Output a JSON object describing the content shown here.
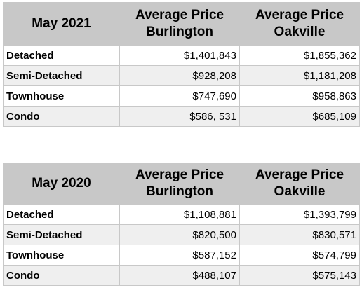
{
  "tables": [
    {
      "period": "May 2021",
      "col1_line1": "Average Price",
      "col1_line2": "Burlington",
      "col2_line1": "Average Price",
      "col2_line2": "Oakville",
      "rows": [
        {
          "type": "Detached",
          "burlington": "$1,401,843",
          "oakville": "$1,855,362"
        },
        {
          "type": "Semi-Detached",
          "burlington": "$928,208",
          "oakville": "$1,181,208"
        },
        {
          "type": "Townhouse",
          "burlington": "$747,690",
          "oakville": "$958,863"
        },
        {
          "type": "Condo",
          "burlington": "$586, 531",
          "oakville": "$685,109"
        }
      ]
    },
    {
      "period": "May 2020",
      "col1_line1": "Average Price",
      "col1_line2": "Burlington",
      "col2_line1": "Average Price",
      "col2_line2": "Oakville",
      "rows": [
        {
          "type": "Detached",
          "burlington": "$1,108,881",
          "oakville": "$1,393,799"
        },
        {
          "type": "Semi-Detached",
          "burlington": "$820,500",
          "oakville": "$830,571"
        },
        {
          "type": "Townhouse",
          "burlington": "$587,152",
          "oakville": "$574,799"
        },
        {
          "type": "Condo",
          "burlington": "$488,107",
          "oakville": "$575,143"
        }
      ]
    }
  ]
}
